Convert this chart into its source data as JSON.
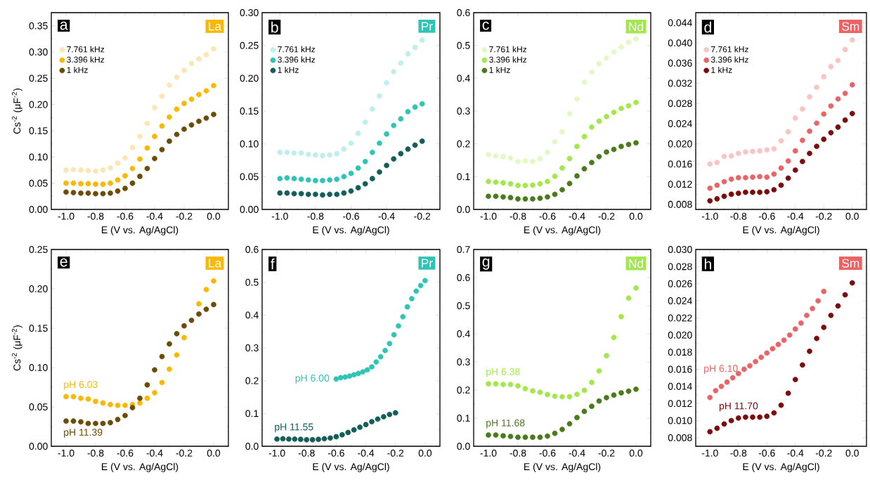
{
  "chart_data": [
    {
      "type": "scatter",
      "xlabel": "E (V vs. Ag/AgCl)",
      "ylabel": "Cs$^{-2}$ (μF$^{-2}$)",
      "annotations": [
        "a",
        "La"
      ],
      "marker": "circle",
      "legend": "top left",
      "xlim": [
        -1.1,
        0.1
      ],
      "ylim": [
        0,
        0.375
      ],
      "xticks": [
        {
          "value": -1.0,
          "label": "-1.0"
        },
        {
          "value": -0.8,
          "label": "-0.8"
        },
        {
          "value": -0.6,
          "label": "-0.6"
        },
        {
          "value": -0.4,
          "label": "-0.4"
        },
        {
          "value": -0.2,
          "label": "-0.2"
        },
        {
          "value": 0.0,
          "label": "0.0"
        }
      ],
      "yticks": [
        {
          "value": 0.0,
          "label": "0.00"
        },
        {
          "value": 0.05,
          "label": "0.05"
        },
        {
          "value": 0.1,
          "label": "0.10"
        },
        {
          "value": 0.15,
          "label": "0.15"
        },
        {
          "value": 0.2,
          "label": "0.20"
        },
        {
          "value": 0.25,
          "label": "0.25"
        },
        {
          "value": 0.3,
          "label": "0.30"
        },
        {
          "value": 0.35,
          "label": "0.35"
        }
      ],
      "x": [
        -1.0,
        -0.95,
        -0.9,
        -0.85,
        -0.8,
        -0.75,
        -0.7,
        -0.65,
        -0.6,
        -0.55,
        -0.5,
        -0.45,
        -0.4,
        -0.35,
        -0.3,
        -0.25,
        -0.2,
        -0.15,
        -0.1,
        -0.05,
        0.0
      ],
      "series": [
        {
          "name": "7.761 kHz",
          "color": "#fde5b4",
          "values": [
            0.075,
            0.076,
            0.075,
            0.074,
            0.073,
            0.075,
            0.079,
            0.088,
            0.098,
            0.118,
            0.139,
            0.164,
            0.194,
            0.216,
            0.237,
            0.252,
            0.265,
            0.278,
            0.287,
            0.295,
            0.306
          ]
        },
        {
          "name": "3.396 kHz",
          "color": "#fbb800",
          "values": [
            0.05,
            0.05,
            0.049,
            0.049,
            0.048,
            0.048,
            0.05,
            0.056,
            0.064,
            0.078,
            0.096,
            0.117,
            0.139,
            0.159,
            0.176,
            0.191,
            0.202,
            0.21,
            0.219,
            0.226,
            0.236
          ]
        },
        {
          "name": "1 kHz",
          "color": "#6b4c07",
          "values": [
            0.033,
            0.032,
            0.031,
            0.031,
            0.03,
            0.03,
            0.031,
            0.035,
            0.04,
            0.05,
            0.063,
            0.078,
            0.097,
            0.114,
            0.13,
            0.143,
            0.153,
            0.161,
            0.168,
            0.174,
            0.181
          ]
        }
      ]
    },
    {
      "type": "scatter",
      "xlabel": "E (V vs. Ag/AgCl)",
      "annotations": [
        "b",
        "Pr"
      ],
      "marker": "circle",
      "legend": "top left",
      "xlim": [
        -1.1,
        -0.1
      ],
      "ylim": [
        0,
        0.3
      ],
      "xticks": [
        {
          "value": -1.0,
          "label": "-1.0"
        },
        {
          "value": -0.8,
          "label": "-0.8"
        },
        {
          "value": -0.6,
          "label": "-0.6"
        },
        {
          "value": -0.4,
          "label": "-0.4"
        },
        {
          "value": -0.2,
          "label": "-0.2"
        }
      ],
      "yticks": [
        {
          "value": 0.0,
          "label": "0.00"
        },
        {
          "value": 0.05,
          "label": "0.05"
        },
        {
          "value": 0.1,
          "label": "0.10"
        },
        {
          "value": 0.15,
          "label": "0.15"
        },
        {
          "value": 0.2,
          "label": "0.20"
        },
        {
          "value": 0.25,
          "label": "0.25"
        },
        {
          "value": 0.3,
          "label": "0.30"
        }
      ],
      "x": [
        -1.0,
        -0.96,
        -0.92,
        -0.88,
        -0.84,
        -0.8,
        -0.76,
        -0.72,
        -0.68,
        -0.64,
        -0.6,
        -0.56,
        -0.52,
        -0.48,
        -0.44,
        -0.4,
        -0.36,
        -0.32,
        -0.28,
        -0.24,
        -0.2
      ],
      "series": [
        {
          "name": "7.761 kHz",
          "color": "#bdf0ec",
          "values": [
            0.087,
            0.087,
            0.086,
            0.086,
            0.084,
            0.083,
            0.082,
            0.083,
            0.085,
            0.092,
            0.101,
            0.116,
            0.133,
            0.153,
            0.173,
            0.193,
            0.21,
            0.223,
            0.237,
            0.247,
            0.258
          ]
        },
        {
          "name": "3.396 kHz",
          "color": "#2ec4b6",
          "values": [
            0.047,
            0.048,
            0.047,
            0.046,
            0.045,
            0.044,
            0.044,
            0.045,
            0.046,
            0.05,
            0.055,
            0.063,
            0.073,
            0.087,
            0.101,
            0.115,
            0.128,
            0.138,
            0.149,
            0.156,
            0.161
          ]
        },
        {
          "name": "1 kHz",
          "color": "#135e58",
          "values": [
            0.025,
            0.025,
            0.024,
            0.024,
            0.023,
            0.023,
            0.022,
            0.023,
            0.023,
            0.025,
            0.028,
            0.033,
            0.039,
            0.047,
            0.057,
            0.067,
            0.077,
            0.085,
            0.092,
            0.098,
            0.104
          ]
        }
      ]
    },
    {
      "type": "scatter",
      "xlabel": "E (V vs. Ag/AgCl)",
      "annotations": [
        "c",
        "Nd"
      ],
      "marker": "circle",
      "legend": "top left",
      "xlim": [
        -1.1,
        0.1
      ],
      "ylim": [
        0,
        0.6
      ],
      "xticks": [
        {
          "value": -1.0,
          "label": "-1.0"
        },
        {
          "value": -0.8,
          "label": "-0.8"
        },
        {
          "value": -0.6,
          "label": "-0.6"
        },
        {
          "value": -0.4,
          "label": "-0.4"
        },
        {
          "value": -0.2,
          "label": "-0.2"
        },
        {
          "value": 0.0,
          "label": "0.0"
        }
      ],
      "yticks": [
        {
          "value": 0.0,
          "label": "0.0"
        },
        {
          "value": 0.1,
          "label": "0.1"
        },
        {
          "value": 0.2,
          "label": "0.2"
        },
        {
          "value": 0.3,
          "label": "0.3"
        },
        {
          "value": 0.4,
          "label": "0.4"
        },
        {
          "value": 0.5,
          "label": "0.5"
        },
        {
          "value": 0.6,
          "label": "0.6"
        }
      ],
      "x": [
        -1.0,
        -0.95,
        -0.9,
        -0.85,
        -0.8,
        -0.75,
        -0.7,
        -0.65,
        -0.6,
        -0.55,
        -0.5,
        -0.45,
        -0.4,
        -0.35,
        -0.3,
        -0.25,
        -0.2,
        -0.15,
        -0.1,
        -0.05,
        0.0
      ],
      "series": [
        {
          "name": "7.761 kHz",
          "color": "#e2f9c4",
          "values": [
            0.167,
            0.163,
            0.161,
            0.157,
            0.146,
            0.148,
            0.146,
            0.155,
            0.174,
            0.206,
            0.237,
            0.292,
            0.337,
            0.388,
            0.419,
            0.444,
            0.461,
            0.48,
            0.495,
            0.51,
            0.52
          ]
        },
        {
          "name": "3.396 kHz",
          "color": "#a2e84a",
          "values": [
            0.085,
            0.083,
            0.081,
            0.078,
            0.073,
            0.073,
            0.074,
            0.078,
            0.085,
            0.101,
            0.126,
            0.155,
            0.192,
            0.222,
            0.251,
            0.269,
            0.283,
            0.296,
            0.308,
            0.316,
            0.326
          ]
        },
        {
          "name": "1 kHz",
          "color": "#4a7a1a",
          "values": [
            0.04,
            0.04,
            0.038,
            0.036,
            0.032,
            0.032,
            0.032,
            0.034,
            0.038,
            0.046,
            0.06,
            0.079,
            0.102,
            0.124,
            0.143,
            0.161,
            0.175,
            0.183,
            0.192,
            0.198,
            0.203
          ]
        }
      ]
    },
    {
      "type": "scatter",
      "xlabel": "E (V vs. Ag/AgCl)",
      "annotations": [
        "d",
        "Sm"
      ],
      "marker": "circle",
      "legend": "top left",
      "xlim": [
        -1.1,
        0.1
      ],
      "ylim": [
        0.007,
        0.046
      ],
      "xticks": [
        {
          "value": -1.0,
          "label": "-1.0"
        },
        {
          "value": -0.8,
          "label": "-0.8"
        },
        {
          "value": -0.6,
          "label": "-0.6"
        },
        {
          "value": -0.4,
          "label": "-0.4"
        },
        {
          "value": -0.2,
          "label": "-0.2"
        },
        {
          "value": 0.0,
          "label": "0.0"
        }
      ],
      "yticks": [
        {
          "value": 0.008,
          "label": "0.008"
        },
        {
          "value": 0.012,
          "label": "0.012"
        },
        {
          "value": 0.016,
          "label": "0.016"
        },
        {
          "value": 0.02,
          "label": "0.020"
        },
        {
          "value": 0.024,
          "label": "0.024"
        },
        {
          "value": 0.028,
          "label": "0.028"
        },
        {
          "value": 0.032,
          "label": "0.032"
        },
        {
          "value": 0.036,
          "label": "0.036"
        },
        {
          "value": 0.04,
          "label": "0.040"
        },
        {
          "value": 0.044,
          "label": "0.044"
        }
      ],
      "x": [
        -1.0,
        -0.95,
        -0.9,
        -0.85,
        -0.8,
        -0.75,
        -0.7,
        -0.65,
        -0.6,
        -0.55,
        -0.5,
        -0.45,
        -0.4,
        -0.35,
        -0.3,
        -0.25,
        -0.2,
        -0.15,
        -0.1,
        -0.05,
        0.0
      ],
      "series": [
        {
          "name": "7.761 kHz",
          "color": "#f9c4c4",
          "values": [
            0.016,
            0.0163,
            0.0175,
            0.0176,
            0.0181,
            0.0184,
            0.0185,
            0.0186,
            0.0188,
            0.019,
            0.0206,
            0.0224,
            0.0251,
            0.0269,
            0.0293,
            0.0312,
            0.0333,
            0.0353,
            0.0365,
            0.0387,
            0.0406
          ]
        },
        {
          "name": "3.396 kHz",
          "color": "#ea6466",
          "values": [
            0.0112,
            0.0118,
            0.0125,
            0.013,
            0.0133,
            0.0133,
            0.0134,
            0.0135,
            0.0134,
            0.014,
            0.0152,
            0.0166,
            0.0186,
            0.0207,
            0.0225,
            0.0241,
            0.0259,
            0.0275,
            0.0289,
            0.03,
            0.0317
          ]
        },
        {
          "name": "1 kHz",
          "color": "#7a0c0c",
          "values": [
            0.0087,
            0.0091,
            0.0096,
            0.01,
            0.0102,
            0.0104,
            0.0104,
            0.0104,
            0.0105,
            0.0109,
            0.0118,
            0.0132,
            0.0148,
            0.0165,
            0.0181,
            0.0195,
            0.0209,
            0.0222,
            0.0233,
            0.0247,
            0.026
          ]
        }
      ]
    },
    {
      "type": "scatter",
      "xlabel": "E (V vs. Ag/AgCl)",
      "ylabel": "Cs$^{-2}$ (μF$^{-2}$)",
      "annotations": [
        "e",
        "La"
      ],
      "marker": "circle",
      "xlim": [
        -1.1,
        0.1
      ],
      "ylim": [
        0,
        0.25
      ],
      "xticks": [
        {
          "value": -1.0,
          "label": "-1.0"
        },
        {
          "value": -0.8,
          "label": "-0.8"
        },
        {
          "value": -0.6,
          "label": "-0.6"
        },
        {
          "value": -0.4,
          "label": "-0.4"
        },
        {
          "value": -0.2,
          "label": "-0.2"
        },
        {
          "value": 0.0,
          "label": "0.0"
        }
      ],
      "yticks": [
        {
          "value": 0.0,
          "label": "0.00"
        },
        {
          "value": 0.05,
          "label": "0.05"
        },
        {
          "value": 0.1,
          "label": "0.10"
        },
        {
          "value": 0.15,
          "label": "0.15"
        },
        {
          "value": 0.2,
          "label": "0.20"
        },
        {
          "value": 0.25,
          "label": "0.25"
        }
      ],
      "x": [
        -1.0,
        -0.95,
        -0.9,
        -0.85,
        -0.8,
        -0.75,
        -0.7,
        -0.65,
        -0.6,
        -0.55,
        -0.5,
        -0.45,
        -0.4,
        -0.35,
        -0.3,
        -0.25,
        -0.2,
        -0.15,
        -0.1,
        -0.05,
        0.0
      ],
      "series": [
        {
          "name": "pH 6.03",
          "color": "#fbb800",
          "values": [
            0.063,
            0.063,
            0.061,
            0.06,
            0.057,
            0.055,
            0.053,
            0.052,
            0.052,
            0.053,
            0.055,
            0.061,
            0.068,
            0.081,
            0.098,
            0.116,
            0.138,
            null,
            0.181,
            0.199,
            0.21
          ]
        },
        {
          "name": "pH 11.39",
          "color": "#6b4c07",
          "values": [
            0.032,
            0.032,
            0.031,
            0.029,
            0.029,
            0.029,
            0.03,
            0.034,
            0.039,
            0.049,
            0.061,
            0.078,
            0.097,
            0.114,
            0.13,
            0.143,
            0.153,
            0.16,
            0.168,
            0.174,
            0.18
          ]
        }
      ]
    },
    {
      "type": "scatter",
      "xlabel": "E (V vs. Ag/AgCl)",
      "annotations": [
        "f",
        "Pr"
      ],
      "marker": "circle",
      "xlim": [
        -1.1,
        0.1
      ],
      "ylim": [
        0,
        0.6
      ],
      "xticks": [
        {
          "value": -1.0,
          "label": "-1.0"
        },
        {
          "value": -0.8,
          "label": "-0.8"
        },
        {
          "value": -0.6,
          "label": "-0.6"
        },
        {
          "value": -0.4,
          "label": "-0.4"
        },
        {
          "value": -0.2,
          "label": "-0.2"
        },
        {
          "value": 0.0,
          "label": "0.0"
        }
      ],
      "yticks": [
        {
          "value": 0.0,
          "label": "0.0"
        },
        {
          "value": 0.1,
          "label": "0.1"
        },
        {
          "value": 0.2,
          "label": "0.2"
        },
        {
          "value": 0.3,
          "label": "0.3"
        },
        {
          "value": 0.4,
          "label": "0.4"
        },
        {
          "value": 0.5,
          "label": "0.5"
        },
        {
          "value": 0.6,
          "label": "0.6"
        }
      ],
      "series": [
        {
          "name": "pH 6.00",
          "color": "#2ec4b6",
          "x": [
            -0.6,
            -0.57,
            -0.54,
            -0.51,
            -0.48,
            -0.45,
            -0.42,
            -0.39,
            -0.36,
            -0.33,
            -0.3,
            -0.27,
            -0.24,
            -0.21,
            -0.18,
            -0.15,
            -0.12,
            -0.09,
            -0.06,
            -0.03,
            0.0
          ],
          "values": [
            0.205,
            0.209,
            0.211,
            0.214,
            0.218,
            0.222,
            0.227,
            0.233,
            0.242,
            0.257,
            0.273,
            0.292,
            0.313,
            0.34,
            0.367,
            0.395,
            0.425,
            0.45,
            0.473,
            0.49,
            0.505
          ]
        },
        {
          "name": "pH 11.55",
          "color": "#135e58",
          "x": [
            -1.0,
            -0.96,
            -0.92,
            -0.88,
            -0.84,
            -0.8,
            -0.76,
            -0.72,
            -0.68,
            -0.64,
            -0.6,
            -0.56,
            -0.52,
            -0.48,
            -0.44,
            -0.4,
            -0.36,
            -0.32,
            -0.28,
            -0.24,
            -0.2
          ],
          "values": [
            0.022,
            0.023,
            0.022,
            0.022,
            0.021,
            0.02,
            0.02,
            0.021,
            0.023,
            0.025,
            0.029,
            0.035,
            0.042,
            0.05,
            0.058,
            0.066,
            0.075,
            0.083,
            0.09,
            0.097,
            0.102
          ]
        }
      ]
    },
    {
      "type": "scatter",
      "xlabel": "E (V vs. Ag/AgCl)",
      "annotations": [
        "g",
        "Nd"
      ],
      "marker": "circle",
      "xlim": [
        -1.1,
        0.1
      ],
      "ylim": [
        0,
        0.7
      ],
      "xticks": [
        {
          "value": -1.0,
          "label": "-1.0"
        },
        {
          "value": -0.8,
          "label": "-0.8"
        },
        {
          "value": -0.6,
          "label": "-0.6"
        },
        {
          "value": -0.4,
          "label": "-0.4"
        },
        {
          "value": -0.2,
          "label": "-0.2"
        },
        {
          "value": 0.0,
          "label": "0.0"
        }
      ],
      "yticks": [
        {
          "value": 0.0,
          "label": "0.0"
        },
        {
          "value": 0.1,
          "label": "0.1"
        },
        {
          "value": 0.2,
          "label": "0.2"
        },
        {
          "value": 0.3,
          "label": "0.3"
        },
        {
          "value": 0.4,
          "label": "0.4"
        },
        {
          "value": 0.5,
          "label": "0.5"
        },
        {
          "value": 0.6,
          "label": "0.6"
        },
        {
          "value": 0.7,
          "label": "0.7"
        }
      ],
      "x": [
        -1.0,
        -0.95,
        -0.9,
        -0.85,
        -0.8,
        -0.75,
        -0.7,
        -0.65,
        -0.6,
        -0.55,
        -0.5,
        -0.45,
        -0.4,
        -0.35,
        -0.3,
        -0.25,
        -0.2,
        -0.15,
        -0.1,
        -0.05,
        0.0
      ],
      "series": [
        {
          "name": "pH 6.38",
          "color": "#a2e84a",
          "values": [
            0.222,
            0.222,
            0.22,
            0.22,
            0.215,
            0.205,
            0.197,
            0.192,
            0.184,
            0.178,
            0.176,
            0.176,
            0.185,
            0.199,
            0.227,
            0.268,
            0.322,
            0.387,
            0.461,
            0.527,
            0.563
          ]
        },
        {
          "name": "pH 11.68",
          "color": "#4a7a1a",
          "values": [
            0.04,
            0.04,
            0.037,
            0.035,
            0.032,
            0.032,
            0.032,
            0.032,
            0.036,
            0.046,
            0.06,
            0.08,
            0.102,
            0.124,
            0.142,
            0.161,
            0.173,
            0.182,
            0.19,
            0.196,
            0.203
          ]
        }
      ]
    },
    {
      "type": "scatter",
      "xlabel": "E (V vs. Ag/AgCl)",
      "annotations": [
        "h",
        "Sm"
      ],
      "marker": "circle",
      "xlim": [
        -1.1,
        0.1
      ],
      "ylim": [
        0.007,
        0.03
      ],
      "xticks": [
        {
          "value": -1.0,
          "label": "-1.0"
        },
        {
          "value": -0.8,
          "label": "-0.8"
        },
        {
          "value": -0.6,
          "label": "-0.6"
        },
        {
          "value": -0.4,
          "label": "-0.4"
        },
        {
          "value": -0.2,
          "label": "-0.2"
        },
        {
          "value": 0.0,
          "label": "0.0"
        }
      ],
      "yticks": [
        {
          "value": 0.008,
          "label": "0.008"
        },
        {
          "value": 0.01,
          "label": "0.010"
        },
        {
          "value": 0.012,
          "label": "0.012"
        },
        {
          "value": 0.014,
          "label": "0.014"
        },
        {
          "value": 0.016,
          "label": "0.016"
        },
        {
          "value": 0.018,
          "label": "0.018"
        },
        {
          "value": 0.02,
          "label": "0.020"
        },
        {
          "value": 0.022,
          "label": "0.022"
        },
        {
          "value": 0.024,
          "label": "0.024"
        },
        {
          "value": 0.026,
          "label": "0.026"
        },
        {
          "value": 0.028,
          "label": "0.028"
        },
        {
          "value": 0.03,
          "label": "0.030"
        }
      ],
      "series": [
        {
          "name": "pH 6.10",
          "color": "#ea6466",
          "x": [
            -1.0,
            -0.96,
            -0.92,
            -0.88,
            -0.84,
            -0.8,
            -0.76,
            -0.72,
            -0.68,
            -0.64,
            -0.6,
            -0.56,
            -0.52,
            -0.48,
            -0.44,
            -0.4,
            -0.36,
            -0.32,
            -0.28,
            -0.24,
            -0.2
          ],
          "values": [
            0.0127,
            0.0135,
            0.014,
            0.0145,
            0.015,
            0.0155,
            0.016,
            0.0164,
            0.0169,
            0.0174,
            0.0179,
            0.0184,
            0.0189,
            0.0194,
            0.02,
            0.0207,
            0.0214,
            0.0223,
            0.0231,
            0.024,
            0.0251
          ]
        },
        {
          "name": "pH 11.70",
          "color": "#7a0c0c",
          "x": [
            -1.0,
            -0.95,
            -0.9,
            -0.85,
            -0.8,
            -0.75,
            -0.7,
            -0.65,
            -0.6,
            -0.55,
            -0.5,
            -0.45,
            -0.4,
            -0.35,
            -0.3,
            -0.25,
            -0.2,
            -0.15,
            -0.1,
            -0.05,
            0.0
          ],
          "values": [
            0.0087,
            0.0091,
            0.0096,
            0.01,
            0.0103,
            0.0104,
            0.0104,
            0.0104,
            0.0105,
            0.0109,
            0.0118,
            0.0132,
            0.0148,
            0.0165,
            0.0181,
            0.0196,
            0.0209,
            0.0223,
            0.0234,
            0.0247,
            0.0261
          ]
        }
      ]
    }
  ]
}
